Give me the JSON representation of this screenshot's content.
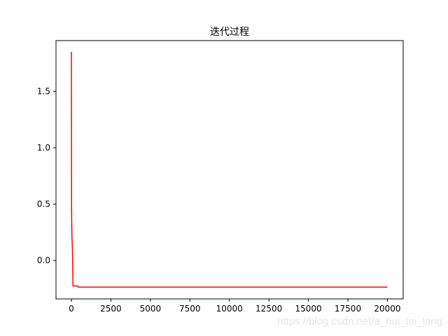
{
  "chart_data": {
    "type": "line",
    "title": "迭代过程",
    "xlabel": "",
    "ylabel": "",
    "xlim": [
      -975,
      21000
    ],
    "ylim": [
      -0.34,
      1.95
    ],
    "grid": false,
    "x_ticks": [
      "0",
      "2500",
      "5000",
      "7500",
      "10000",
      "12500",
      "15000",
      "17500",
      "20000"
    ],
    "x_tick_values": [
      0,
      2500,
      5000,
      7500,
      10000,
      12500,
      15000,
      17500,
      20000
    ],
    "y_ticks": [
      "0.0",
      "0.5",
      "1.0",
      "1.5"
    ],
    "y_tick_values": [
      0.0,
      0.5,
      1.0,
      1.5
    ],
    "series": [
      {
        "color": "#ff0000",
        "x": [
          0,
          10,
          20,
          40,
          60,
          100,
          400,
          420,
          20000
        ],
        "y": [
          1.85,
          0.52,
          0.3,
          0.19,
          0.12,
          -0.225,
          -0.225,
          -0.235,
          -0.235
        ]
      }
    ]
  },
  "watermark": "https://blog.csdn.net/a_hui_tai_lang"
}
